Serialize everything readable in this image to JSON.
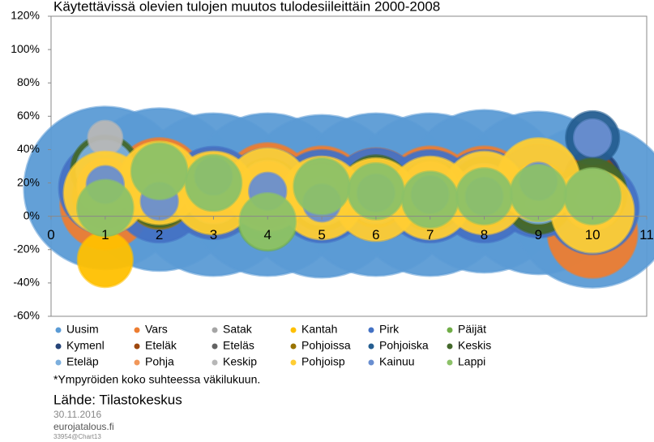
{
  "chart_data": {
    "type": "bubble",
    "title": "Käytettävissä olevien tulojen muutos tulodesiileittäin 2000-2008",
    "x": [
      1,
      2,
      3,
      4,
      5,
      6,
      7,
      8,
      9,
      10
    ],
    "xlim": [
      0,
      11
    ],
    "xticks": [
      0,
      1,
      2,
      3,
      4,
      5,
      6,
      7,
      8,
      9,
      10,
      11
    ],
    "ylim": [
      -60,
      120
    ],
    "yticks": [
      {
        "value": -60,
        "label": "-60%"
      },
      {
        "value": -40,
        "label": "-40%"
      },
      {
        "value": -20,
        "label": "-20%"
      },
      {
        "value": 0,
        "label": "0%"
      },
      {
        "value": 20,
        "label": "20%"
      },
      {
        "value": 40,
        "label": "40%"
      },
      {
        "value": 60,
        "label": "60%"
      },
      {
        "value": 80,
        "label": "80%"
      },
      {
        "value": 100,
        "label": "100%"
      },
      {
        "value": 120,
        "label": "120%"
      }
    ],
    "series": [
      {
        "name": "Uusim",
        "color": "#5b9bd5",
        "size": 1550,
        "values": [
          17,
          16,
          13,
          13,
          12,
          13,
          13,
          15,
          14,
          6
        ]
      },
      {
        "name": "Vars",
        "color": "#ed7d31",
        "size": 470,
        "values": [
          7,
          20,
          14,
          17,
          15,
          14,
          15,
          15,
          16,
          -10
        ]
      },
      {
        "name": "Satak",
        "color": "#a5a5a5",
        "size": 225,
        "values": [
          20,
          17,
          15,
          15,
          13,
          13,
          14,
          14,
          14,
          15
        ]
      },
      {
        "name": "Kantah",
        "color": "#ffc000",
        "size": 175,
        "values": [
          -26,
          18,
          14,
          15,
          12,
          11,
          11,
          13,
          21,
          4
        ]
      },
      {
        "name": "Pirk",
        "color": "#4472c4",
        "size": 500,
        "values": [
          17,
          12,
          14,
          13,
          12,
          13,
          12,
          12,
          15,
          5
        ]
      },
      {
        "name": "Päijät",
        "color": "#70ad47",
        "size": 200,
        "values": [
          6,
          27,
          19,
          -3,
          17,
          14,
          10,
          11,
          14,
          12
        ]
      },
      {
        "name": "Kymenl",
        "color": "#264478",
        "size": 180,
        "values": [
          14,
          13,
          12,
          14,
          11,
          12,
          13,
          13,
          14,
          23
        ]
      },
      {
        "name": "Eteläk",
        "color": "#9e480e",
        "size": 132,
        "values": [
          13,
          8,
          12,
          13,
          11,
          12,
          12,
          12,
          14,
          23
        ]
      },
      {
        "name": "Eteläs",
        "color": "#636363",
        "size": 152,
        "values": [
          14,
          14,
          13,
          14,
          13,
          13,
          14,
          14,
          13,
          11
        ]
      },
      {
        "name": "Pohjoissa",
        "color": "#997300",
        "size": 248,
        "values": [
          12,
          12,
          13,
          13,
          12,
          13,
          14,
          13,
          13,
          11
        ]
      },
      {
        "name": "Pohjoiska",
        "color": "#255e91",
        "size": 165,
        "values": [
          22,
          15,
          15,
          14,
          14,
          14,
          13,
          14,
          13,
          47
        ]
      },
      {
        "name": "Keskis",
        "color": "#43682b",
        "size": 275,
        "values": [
          28,
          14,
          10,
          14,
          12,
          16,
          12,
          15,
          10,
          14
        ]
      },
      {
        "name": "Eteläp",
        "color": "#7cafdd",
        "size": 195,
        "values": [
          28,
          17,
          13,
          16,
          12,
          13,
          12,
          14,
          13,
          9
        ]
      },
      {
        "name": "Pohja",
        "color": "#f1975a",
        "size": 181,
        "values": [
          18,
          19,
          13,
          16,
          14,
          14,
          16,
          14,
          15,
          9
        ]
      },
      {
        "name": "Keskip",
        "color": "#b7b7b7",
        "size": 68,
        "values": [
          47,
          15,
          14,
          15,
          13,
          13,
          14,
          14,
          14,
          13
        ]
      },
      {
        "name": "Pohjoisp",
        "color": "#ffcd33",
        "size": 400,
        "values": [
          14,
          20,
          14,
          16,
          11,
          10,
          11,
          14,
          22,
          3
        ]
      },
      {
        "name": "Kainuu",
        "color": "#698ed0",
        "size": 80,
        "values": [
          19,
          9,
          24,
          15,
          8,
          14,
          13,
          12,
          21,
          47
        ]
      },
      {
        "name": "Lappi",
        "color": "#8cc168",
        "size": 183,
        "values": [
          5,
          27,
          20,
          -3,
          18,
          15,
          10,
          12,
          14,
          12
        ]
      }
    ],
    "note": "*Ympyröiden koko suhteessa väkilukuun.",
    "source": "Lähde: Tilastokeskus",
    "date": "30.11.2016",
    "site": "eurojatalous.fi",
    "code": "33954@Chart13"
  }
}
